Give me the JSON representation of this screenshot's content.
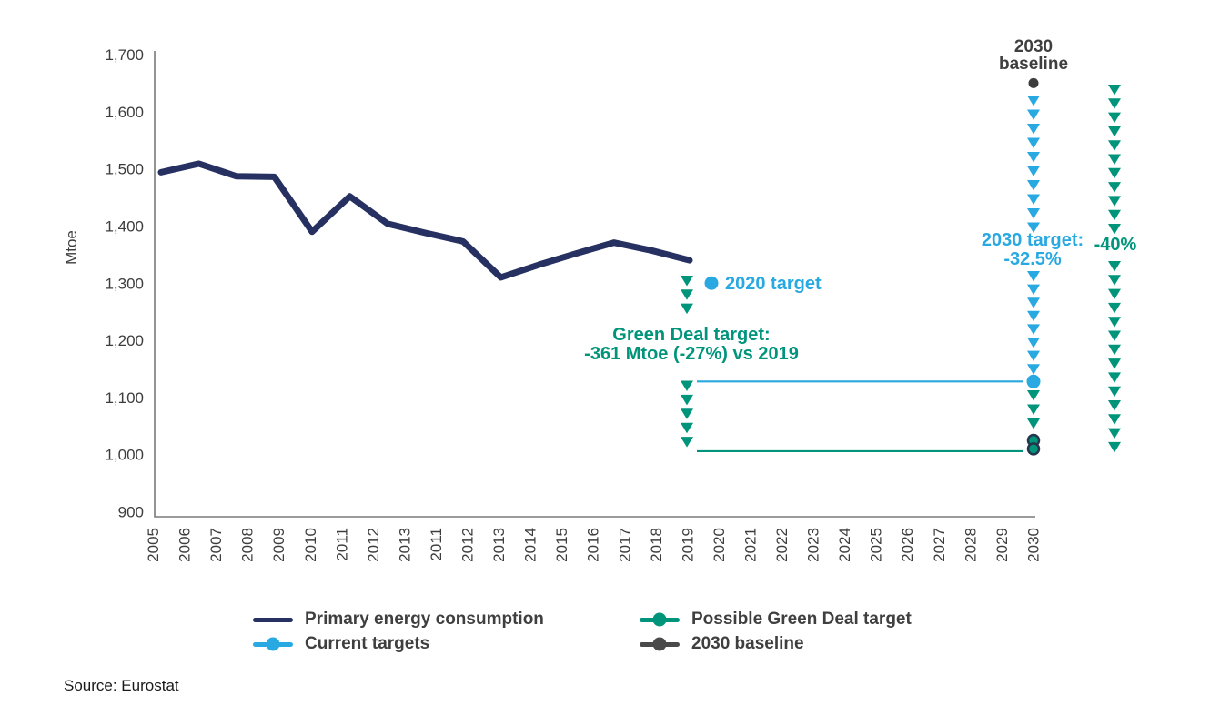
{
  "chart_data": {
    "type": "line",
    "title": "",
    "ylabel": "Mtoe",
    "ylim": [
      900,
      1700
    ],
    "grid": false,
    "legend_position": "bottom",
    "y_tick_labels": [
      "900",
      "1,000",
      "1,100",
      "1,200",
      "1,300",
      "1,400",
      "1,500",
      "1,600",
      "1,700"
    ],
    "x_tick_labels": [
      "2005",
      "2006",
      "2007",
      "2008",
      "2009",
      "2010",
      "2011",
      "2012",
      "2013",
      "2011",
      "2012",
      "2013",
      "2014",
      "2015",
      "2016",
      "2017",
      "2018",
      "2019",
      "2020",
      "2021",
      "2022",
      "2023",
      "2024",
      "2025",
      "2026",
      "2027",
      "2028",
      "2029",
      "2030"
    ],
    "series": [
      {
        "name": "Primary energy consumption",
        "color": "navy",
        "x": [
          2005,
          2006,
          2007,
          2008,
          2009,
          2010,
          2011,
          2012,
          2013,
          2014,
          2015,
          2016,
          2017,
          2018,
          2019
        ],
        "values": [
          1494,
          1509,
          1487,
          1486,
          1390,
          1452,
          1404,
          1388,
          1373,
          1310,
          1332,
          1352,
          1371,
          1357,
          1340
        ]
      }
    ],
    "target_lines": [
      {
        "name": "current-targets-2030-line",
        "value": 1128,
        "color": "blue"
      },
      {
        "name": "possible-green-deal-target-line",
        "value": 1006,
        "color": "teal"
      }
    ],
    "points": [
      {
        "name": "target-2020-dot",
        "value": 1300,
        "color": "blue"
      },
      {
        "name": "baseline-2030-dot",
        "value": 1650,
        "color": "dot_gray"
      },
      {
        "name": "target-2030-dot",
        "value": 1128,
        "color": "blue"
      },
      {
        "name": "green-deal-dot-upper",
        "value": 1025,
        "color": "teal",
        "outlined": true
      },
      {
        "name": "green-deal-dot-lower",
        "value": 1010,
        "color": "teal",
        "outlined": true
      }
    ],
    "annotations": {
      "target_2020": {
        "text": "2020 target",
        "color": "blue"
      },
      "green_deal": {
        "line1": "Green Deal target:",
        "line2": "-361 Mtoe (-27%) vs 2019",
        "color": "teal"
      },
      "baseline_2030": {
        "line1": "2030",
        "line2": "baseline",
        "color": "gray"
      },
      "target_2030": {
        "line1": "2030 target:",
        "line2": "-32.5%",
        "color": "blue"
      },
      "minus_40": {
        "text": "-40%",
        "color": "teal"
      }
    },
    "arrow_columns": [
      {
        "name": "arrows-2019-to-2020-target",
        "x": 755,
        "y_start": 303,
        "count": 3,
        "step": 15.3,
        "color": "teal"
      },
      {
        "name": "arrows-2019-to-green-deal",
        "x": 755,
        "y_start": 418.5,
        "count": 5,
        "step": 15.4,
        "color": "teal"
      },
      {
        "name": "arrows-2030-baseline-to-target-upper",
        "x": 1136,
        "y_start": 105,
        "count": 10,
        "step": 15.5,
        "color": "blue"
      },
      {
        "name": "arrows-2030-baseline-to-target-lower",
        "x": 1136,
        "y_start": 298,
        "count": 8,
        "step": 14.6,
        "color": "blue"
      },
      {
        "name": "arrows-2030-target-to-green-deal",
        "x": 1136,
        "y_start": 429,
        "count": 3,
        "step": 15.5,
        "color": "teal"
      },
      {
        "name": "arrows-minus40-upper",
        "x": 1225,
        "y_start": 93,
        "count": 11,
        "step": 15.3,
        "color": "teal"
      },
      {
        "name": "arrows-minus40-lower",
        "x": 1225,
        "y_start": 287,
        "count": 14,
        "step": 15.3,
        "color": "teal"
      }
    ]
  },
  "colors": {
    "navy": "#263061",
    "blue": "#29a9e1",
    "teal": "#00947b",
    "gray": "#3f3f3f",
    "dot_gray": "#3d3d3d",
    "axis": "#7a7a7a",
    "dot_outline": "#24364c",
    "legend_gray": "#4a4a4a"
  },
  "legend": {
    "items": [
      {
        "label": "Primary energy consumption",
        "color": "navy",
        "dot": false
      },
      {
        "label": "Current targets",
        "color": "blue",
        "dot": true
      },
      {
        "label": "Possible Green Deal target",
        "color": "teal",
        "dot": true
      },
      {
        "label": "2030 baseline",
        "color": "legend_gray",
        "dot": true
      }
    ]
  },
  "source": "Source: Eurostat"
}
